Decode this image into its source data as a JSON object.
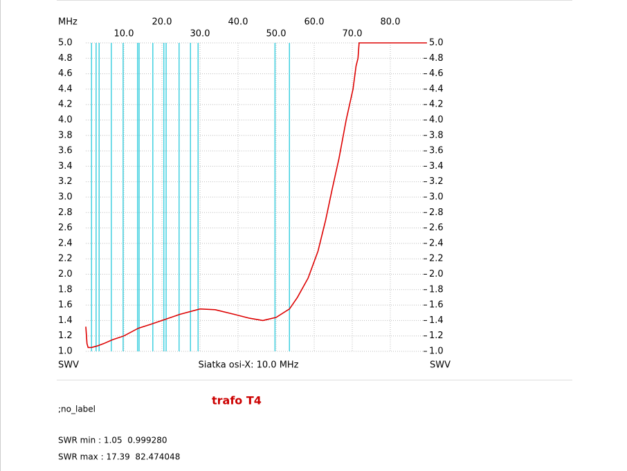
{
  "chart_data": {
    "type": "line",
    "x_unit": "MHz",
    "y_label_left": "SWV",
    "y_label_right": "SWV",
    "x_grid_note": "Siatka osi-X: 10.0 MHz",
    "subtitle": "trafo T4",
    "notes": [
      ";no_label",
      "SWR min : 1.05  0.999280",
      "SWR max : 17.39  82.474048"
    ],
    "xlim": [
      0,
      90
    ],
    "ylim": [
      1.0,
      5.0
    ],
    "xticks": [
      {
        "value": 10,
        "label": "10.0"
      },
      {
        "value": 20,
        "label": "20.0"
      },
      {
        "value": 30,
        "label": "30.0"
      },
      {
        "value": 40,
        "label": "40.0"
      },
      {
        "value": 50,
        "label": "50.0"
      },
      {
        "value": 60,
        "label": "60.0"
      },
      {
        "value": 70,
        "label": "70.0"
      },
      {
        "value": 80,
        "label": "80.0"
      }
    ],
    "yticks": [
      {
        "value": 1.0,
        "label": "1.0"
      },
      {
        "value": 1.2,
        "label": "1.2"
      },
      {
        "value": 1.4,
        "label": "1.4"
      },
      {
        "value": 1.6,
        "label": "1.6"
      },
      {
        "value": 1.8,
        "label": "1.8"
      },
      {
        "value": 2.0,
        "label": "2.0"
      },
      {
        "value": 2.2,
        "label": "2.2"
      },
      {
        "value": 2.4,
        "label": "2.4"
      },
      {
        "value": 2.6,
        "label": "2.6"
      },
      {
        "value": 2.8,
        "label": "2.8"
      },
      {
        "value": 3.0,
        "label": "3.0"
      },
      {
        "value": 3.2,
        "label": "3.2"
      },
      {
        "value": 3.4,
        "label": "3.4"
      },
      {
        "value": 3.6,
        "label": "3.6"
      },
      {
        "value": 3.8,
        "label": "3.8"
      },
      {
        "value": 4.0,
        "label": "4.0"
      },
      {
        "value": 4.2,
        "label": "4.2"
      },
      {
        "value": 4.4,
        "label": "4.4"
      },
      {
        "value": 4.6,
        "label": "4.6"
      },
      {
        "value": 4.8,
        "label": "4.8"
      },
      {
        "value": 5.0,
        "label": "5.0"
      }
    ],
    "grid": true,
    "markers": {
      "color": "#40d0e0",
      "x": [
        1.5,
        2.7,
        3.5,
        6.7,
        9.8,
        13.6,
        14.0,
        17.6,
        20.5,
        21.1,
        24.5,
        27.5,
        29.5,
        49.7,
        53.5
      ]
    },
    "color": "#dd0000",
    "x": [
      0,
      0.3,
      0.6,
      1.5,
      3,
      4.7,
      7,
      10,
      13.8,
      17,
      20,
      24.7,
      30,
      34,
      39,
      43,
      46.5,
      50,
      53.5,
      55.6,
      58.4,
      61,
      63,
      64.7,
      66.5,
      68.4,
      70.2,
      71,
      71.5,
      71.8,
      80,
      89.6
    ],
    "values": [
      1.32,
      1.1,
      1.05,
      1.05,
      1.07,
      1.1,
      1.15,
      1.2,
      1.3,
      1.35,
      1.4,
      1.48,
      1.55,
      1.54,
      1.48,
      1.43,
      1.4,
      1.44,
      1.55,
      1.7,
      1.95,
      2.3,
      2.7,
      3.1,
      3.5,
      4.0,
      4.4,
      4.7,
      4.8,
      5.0,
      5.0,
      5.0
    ]
  }
}
